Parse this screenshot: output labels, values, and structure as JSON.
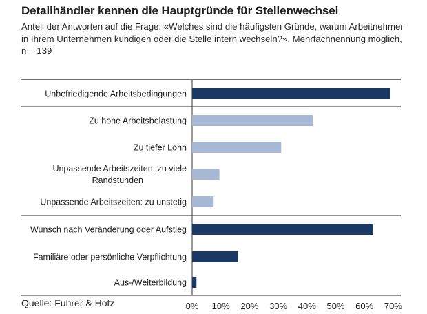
{
  "header": {
    "title": "Detailhändler kennen die Hauptgründe für Stellenwechsel",
    "subtitle": "Anteil der Antworten auf die Frage: «Welches sind die häufigsten Gründe, warum Arbeitnehmer in Ihrem Unternehmen kündigen oder die Stelle intern wechseln?», Mehrfachnennung möglich, n = 139"
  },
  "footer": {
    "source": "Quelle: Fuhrer & Hotz"
  },
  "chart_data": {
    "type": "bar",
    "orientation": "horizontal",
    "xlim": [
      0,
      70
    ],
    "tick_labels": [
      "0%",
      "10%",
      "20%",
      "30%",
      "40%",
      "50%",
      "60%",
      "70%"
    ],
    "categories": [
      [
        "Unbefriedigende Arbeitsbedingungen"
      ],
      [
        "Zu hohe Arbeitsbelastung"
      ],
      [
        "Zu tiefer Lohn"
      ],
      [
        "Unpassende Arbeitszeiten: zu viele",
        "Randstunden"
      ],
      [
        "Unpassende Arbeitszeiten: zu unstetig"
      ],
      [
        "Wunsch nach Veränderung oder Aufstieg"
      ],
      [
        "Familiäre oder persönliche Verpflichtung"
      ],
      [
        "Aus-/Weiterbildung"
      ]
    ],
    "values": [
      69,
      42,
      31,
      9.5,
      7.5,
      63,
      16,
      1.5
    ],
    "groups": [
      "main",
      "sub",
      "sub",
      "sub",
      "sub",
      "main",
      "main",
      "main"
    ],
    "colors": {
      "main": "#1c3864",
      "sub": "#a6b8d3"
    },
    "grid": false
  }
}
